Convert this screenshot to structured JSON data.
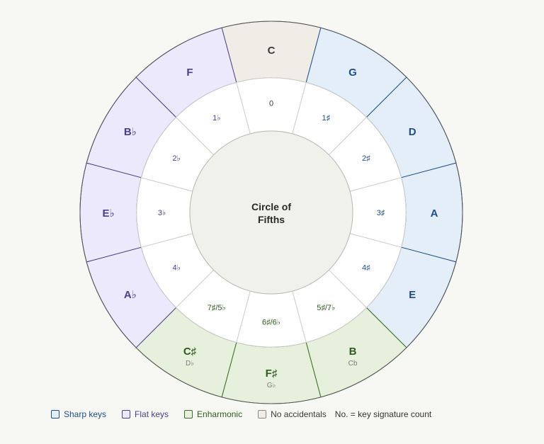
{
  "center_title": [
    "Circle of",
    "Fifths"
  ],
  "outer_keys": [
    {
      "major": "C",
      "minor": "",
      "category": "none"
    },
    {
      "major": "G",
      "minor": "",
      "category": "sharp"
    },
    {
      "major": "D",
      "minor": "",
      "category": "sharp"
    },
    {
      "major": "A",
      "minor": "",
      "category": "sharp"
    },
    {
      "major": "E",
      "minor": "",
      "category": "sharp"
    },
    {
      "major": "B",
      "minor": "Cb",
      "category": "enharmonic"
    },
    {
      "major": "F♯",
      "minor": "G♭",
      "category": "enharmonic"
    },
    {
      "major": "C♯",
      "minor": "D♭",
      "category": "enharmonic"
    },
    {
      "major": "A♭",
      "minor": "",
      "category": "flat"
    },
    {
      "major": "E♭",
      "minor": "",
      "category": "flat"
    },
    {
      "major": "B♭",
      "minor": "",
      "category": "flat"
    },
    {
      "major": "F",
      "minor": "",
      "category": "flat"
    }
  ],
  "inner_counts": [
    "0",
    "1♯",
    "2♯",
    "3♯",
    "4♯",
    "5♯/7♭",
    "6♯/6♭",
    "7♯/5♭",
    "4♭",
    "3♭",
    "2♭",
    "1♭"
  ],
  "colors": {
    "sharp": {
      "fill": "#e4eef9",
      "stroke": "#1f4d8c",
      "text": "#1f4d8c"
    },
    "flat": {
      "fill": "#ebe9fb",
      "stroke": "#4b3f8e",
      "text": "#4b3f8e"
    },
    "enharmonic": {
      "fill": "#e6f0dc",
      "stroke": "#3f6b2a",
      "text": "#2f5a1e"
    },
    "none": {
      "fill": "#f0ede6",
      "stroke": "#888880",
      "text": "#3a3a3a"
    },
    "inner_fill": "#ffffff",
    "center_fill": "#f1f1ec",
    "outer_rim": "#555555"
  },
  "legend": [
    {
      "label": "Sharp keys",
      "category": "sharp"
    },
    {
      "label": "Flat keys",
      "category": "flat"
    },
    {
      "label": "Enharmonic",
      "category": "enharmonic"
    },
    {
      "label": "No accidentals",
      "category": "none"
    }
  ],
  "legend_note": "No. = key signature count"
}
